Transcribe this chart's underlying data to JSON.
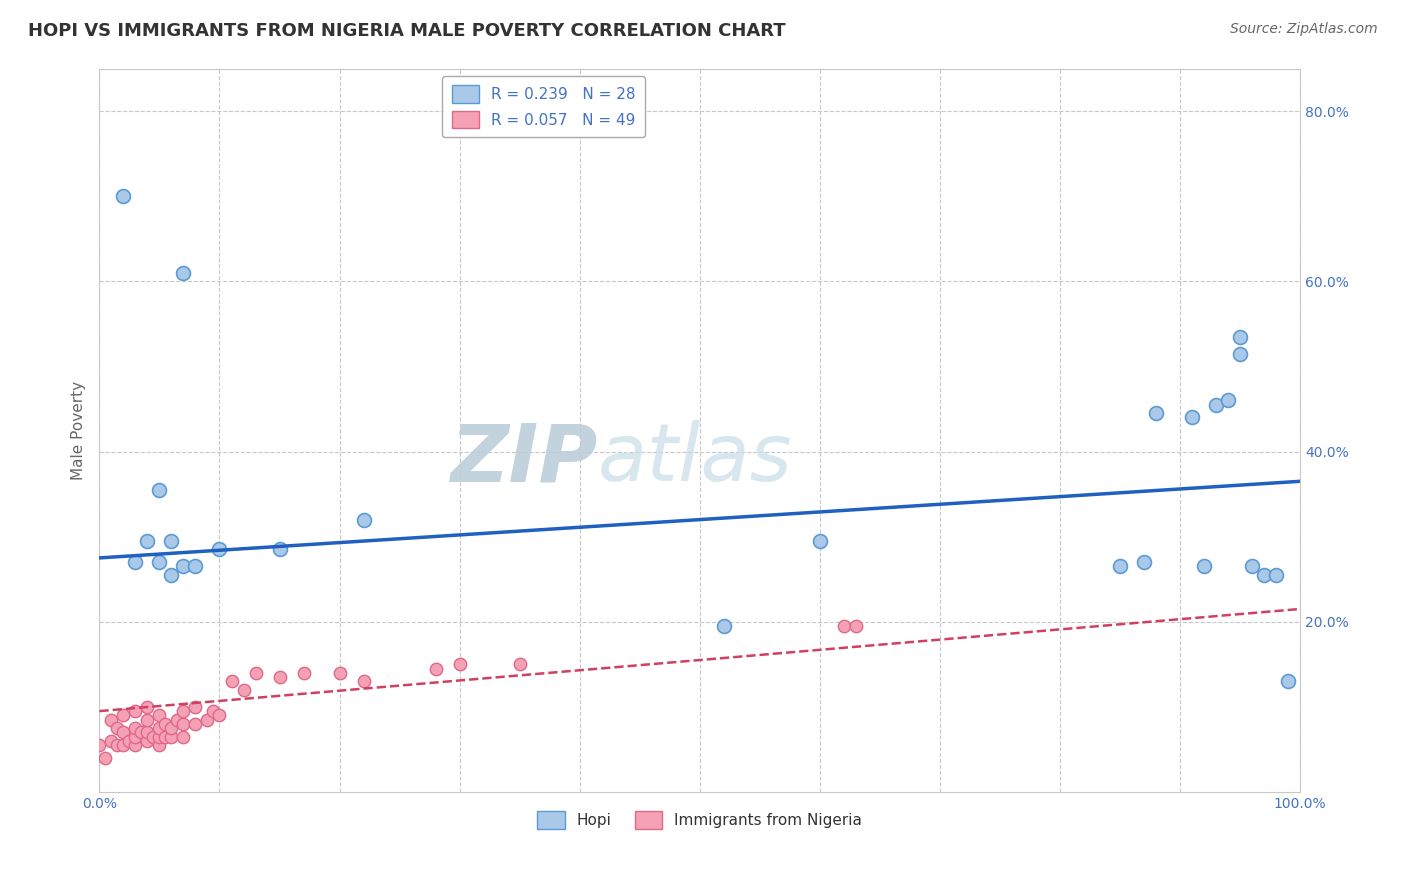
{
  "title": "HOPI VS IMMIGRANTS FROM NIGERIA MALE POVERTY CORRELATION CHART",
  "source": "Source: ZipAtlas.com",
  "ylabel": "Male Poverty",
  "xlim": [
    0,
    1.0
  ],
  "ylim": [
    0,
    0.85
  ],
  "ytick_positions": [
    0.2,
    0.4,
    0.6,
    0.8
  ],
  "ytick_labels": [
    "20.0%",
    "40.0%",
    "60.0%",
    "80.0%"
  ],
  "xtick_positions": [
    0.0,
    0.1,
    0.2,
    0.3,
    0.4,
    0.5,
    0.6,
    0.7,
    0.8,
    0.9,
    1.0
  ],
  "xtick_labels": [
    "0.0%",
    "",
    "",
    "",
    "",
    "",
    "",
    "",
    "",
    "",
    "100.0%"
  ],
  "hopi_color": "#aac9e8",
  "hopi_edge_color": "#5b9bd5",
  "nigeria_color": "#f4a0b5",
  "nigeria_edge_color": "#e06888",
  "hopi_line_color": "#2060c0",
  "nigeria_line_color": "#d04060",
  "legend_label_hopi": "R = 0.239   N = 28",
  "legend_label_nigeria": "R = 0.057   N = 49",
  "legend_bottom_hopi": "Hopi",
  "legend_bottom_nigeria": "Immigrants from Nigeria",
  "hopi_x": [
    0.02,
    0.07,
    0.05,
    0.06,
    0.04,
    0.03,
    0.05,
    0.07,
    0.08,
    0.06,
    0.22,
    0.52,
    0.85,
    0.87,
    0.88,
    0.91,
    0.93,
    0.94,
    0.95,
    0.95,
    0.97,
    0.98,
    0.99,
    0.1,
    0.15,
    0.6,
    0.92,
    0.96
  ],
  "hopi_y": [
    0.7,
    0.61,
    0.355,
    0.295,
    0.295,
    0.27,
    0.27,
    0.265,
    0.265,
    0.255,
    0.32,
    0.195,
    0.265,
    0.27,
    0.445,
    0.44,
    0.455,
    0.46,
    0.535,
    0.515,
    0.255,
    0.255,
    0.13,
    0.285,
    0.285,
    0.295,
    0.265,
    0.265
  ],
  "nigeria_x": [
    0.0,
    0.005,
    0.01,
    0.01,
    0.015,
    0.015,
    0.02,
    0.02,
    0.02,
    0.025,
    0.03,
    0.03,
    0.03,
    0.03,
    0.035,
    0.04,
    0.04,
    0.04,
    0.04,
    0.045,
    0.05,
    0.05,
    0.05,
    0.05,
    0.055,
    0.055,
    0.06,
    0.06,
    0.065,
    0.07,
    0.07,
    0.07,
    0.08,
    0.08,
    0.09,
    0.095,
    0.1,
    0.11,
    0.12,
    0.13,
    0.15,
    0.17,
    0.2,
    0.22,
    0.28,
    0.3,
    0.35,
    0.62,
    0.63
  ],
  "nigeria_y": [
    0.055,
    0.04,
    0.06,
    0.085,
    0.055,
    0.075,
    0.055,
    0.07,
    0.09,
    0.06,
    0.055,
    0.065,
    0.075,
    0.095,
    0.07,
    0.06,
    0.07,
    0.085,
    0.1,
    0.065,
    0.055,
    0.065,
    0.075,
    0.09,
    0.065,
    0.08,
    0.065,
    0.075,
    0.085,
    0.065,
    0.08,
    0.095,
    0.08,
    0.1,
    0.085,
    0.095,
    0.09,
    0.13,
    0.12,
    0.14,
    0.135,
    0.14,
    0.14,
    0.13,
    0.145,
    0.15,
    0.15,
    0.195,
    0.195
  ],
  "hopi_line_y0": 0.275,
  "hopi_line_y1": 0.365,
  "nigeria_line_y0": 0.095,
  "nigeria_line_y1": 0.215,
  "background_color": "#ffffff",
  "grid_color": "#c8c8c8",
  "watermark_text": "ZIP",
  "watermark_text2": "atlas",
  "watermark_color": "#c8d8e8",
  "title_color": "#333333",
  "axis_label_color": "#666666",
  "tick_color": "#4472c4",
  "source_color": "#666666"
}
